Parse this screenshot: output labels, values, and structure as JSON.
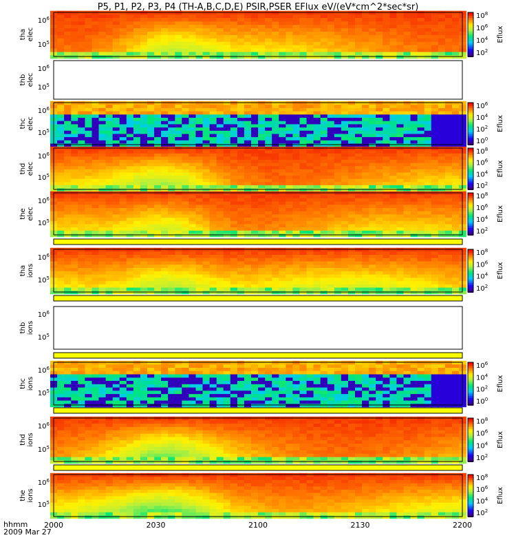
{
  "title": "P5, P1, P2, P3, P4 (TH-A,B,C,D,E) PSIR,PSER EFlux eV/(eV*cm^2*sec*sr)",
  "time_axis": {
    "prefix_top": "hhmm",
    "prefix_bottom": "2009 Mar 27",
    "ticks": [
      "2000",
      "2030",
      "2100",
      "2130",
      "2200"
    ]
  },
  "colorbar": {
    "label": "Eflux",
    "ticks_4": [
      "10^8",
      "10^6",
      "10^4",
      "10^2"
    ],
    "ticks_c": [
      "10^6",
      "10^4",
      "10^2",
      "10^0"
    ]
  },
  "chart_data": {
    "type": "heatmap",
    "x_range": [
      "2000",
      "2200"
    ],
    "color_scale": "log Eflux",
    "panels": [
      {
        "probe": "tha",
        "species": "elec",
        "kind": "smooth",
        "seed": 1,
        "ytick_labels": [
          "10^6",
          "10^5"
        ],
        "colorbar": "4"
      },
      {
        "probe": "thb",
        "species": "elec",
        "kind": "empty",
        "seed": 2,
        "ytick_labels": [
          "10^6",
          "10^5"
        ],
        "colorbar": null
      },
      {
        "probe": "thc",
        "species": "elec",
        "kind": "noisy",
        "seed": 3,
        "ytick_labels": [
          "10^6",
          "10^5"
        ],
        "colorbar": "c"
      },
      {
        "probe": "thd",
        "species": "elec",
        "kind": "smooth",
        "seed": 4,
        "ytick_labels": [
          "10^6",
          "10^5"
        ],
        "colorbar": "4"
      },
      {
        "probe": "the",
        "species": "elec",
        "kind": "smooth",
        "seed": 5,
        "ytick_labels": [
          "10^6",
          "10^5"
        ],
        "colorbar": "4"
      },
      {
        "probe": "tha",
        "species": "ions",
        "kind": "smooth_ion",
        "seed": 6,
        "ytick_labels": [
          "10^6",
          "10^5"
        ],
        "colorbar": "4"
      },
      {
        "probe": "thb",
        "species": "ions",
        "kind": "empty",
        "seed": 7,
        "ytick_labels": [
          "10^6",
          "10^5"
        ],
        "colorbar": null
      },
      {
        "probe": "thc",
        "species": "ions",
        "kind": "noisy",
        "seed": 8,
        "ytick_labels": [
          "10^6",
          "10^5"
        ],
        "colorbar": "c"
      },
      {
        "probe": "thd",
        "species": "ions",
        "kind": "smooth",
        "seed": 9,
        "ytick_labels": [
          "10^6",
          "10^5"
        ],
        "colorbar": "4"
      },
      {
        "probe": "the",
        "species": "ions",
        "kind": "smooth_ion",
        "seed": 10,
        "ytick_labels": [
          "10^6",
          "10^5"
        ],
        "colorbar": "4"
      }
    ]
  }
}
